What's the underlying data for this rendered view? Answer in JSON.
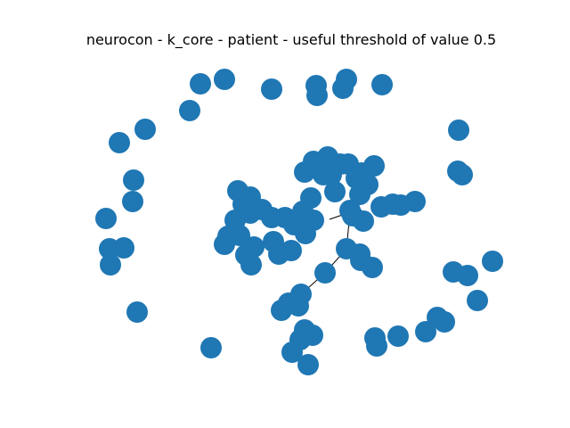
{
  "title": "neurocon - k_core - patient - useful threshold of value 0.5",
  "node_color": "#1f77b4",
  "edge_color": "#000000",
  "graph": {
    "type": "network",
    "node_count": 88,
    "edge_count": 3
  }
}
